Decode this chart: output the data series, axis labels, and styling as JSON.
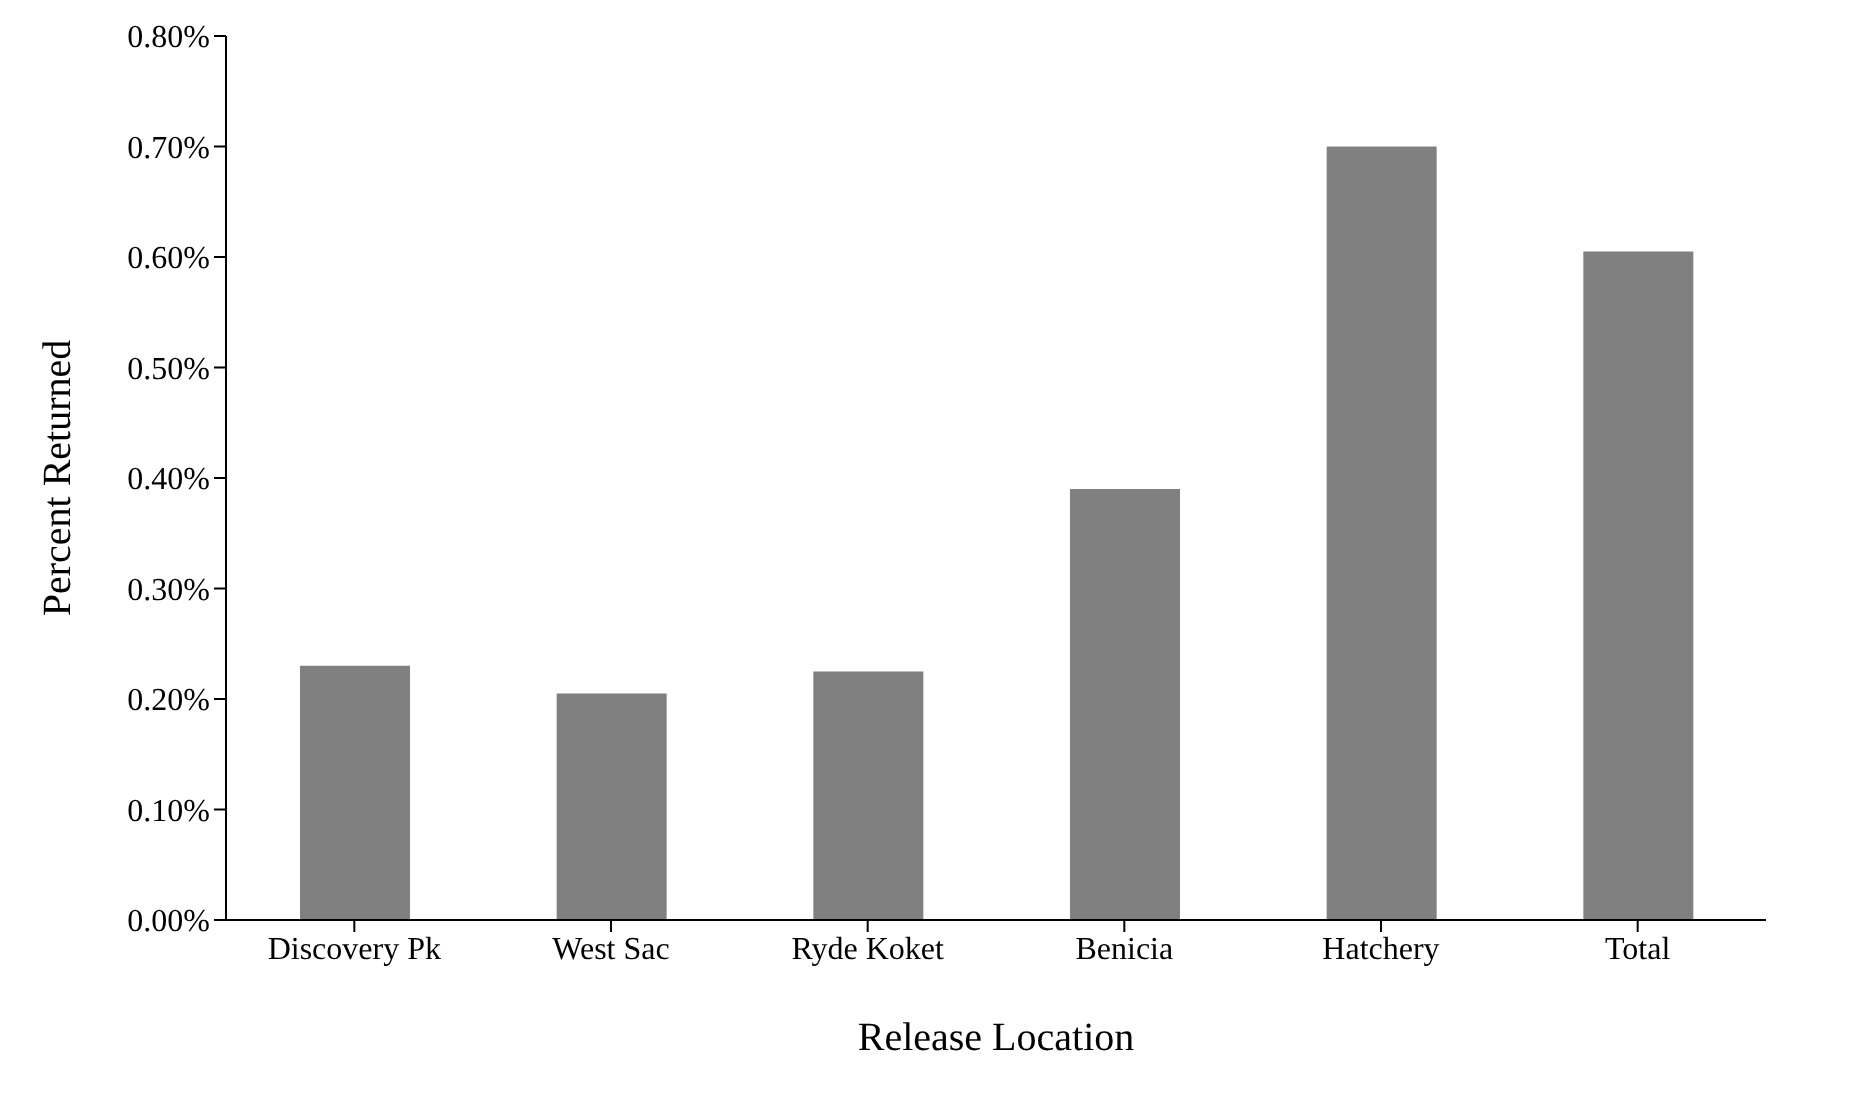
{
  "chart_data": {
    "type": "bar",
    "xlabel": "Release Location",
    "ylabel": "Percent Returned",
    "categories": [
      "Discovery Pk",
      "West Sac",
      "Ryde Koket",
      "Benicia",
      "Hatchery",
      "Total"
    ],
    "values": [
      0.23,
      0.205,
      0.225,
      0.39,
      0.7,
      0.605
    ],
    "color": "#808080",
    "ylim": [
      0,
      0.8
    ],
    "yticks": [
      {
        "value": 0,
        "label": "0.00%"
      },
      {
        "value": 0.1,
        "label": "0.10%"
      },
      {
        "value": 0.2,
        "label": "0.20%"
      },
      {
        "value": 0.3,
        "label": "0.30%"
      },
      {
        "value": 0.4,
        "label": "0.40%"
      },
      {
        "value": 0.5,
        "label": "0.50%"
      },
      {
        "value": 0.6,
        "label": "0.60%"
      },
      {
        "value": 0.7,
        "label": "0.70%"
      },
      {
        "value": 0.8,
        "label": "0.80%"
      }
    ],
    "grid": false,
    "legend": false
  }
}
